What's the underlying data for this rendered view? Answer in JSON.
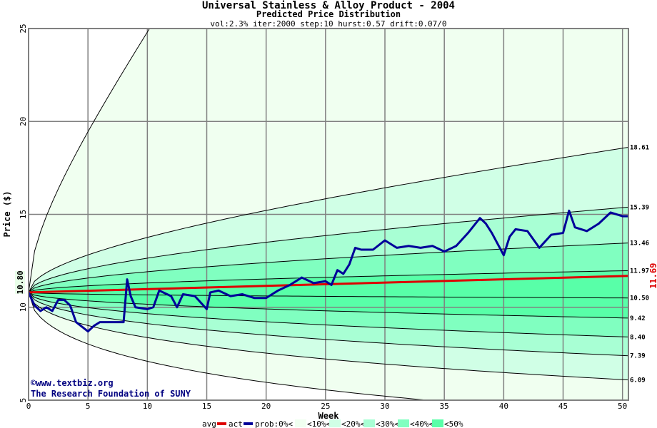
{
  "chart_data": {
    "type": "area",
    "title": "Universal Stainless & Alloy Product - 2004",
    "subtitle": "Predicted Price Distribution",
    "params": "vol:2.3% iter:2000 step:10 hurst:0.57 drift:0.07/0",
    "xlabel": "Week",
    "ylabel": "Price ($)",
    "xlim": [
      0,
      50.5
    ],
    "ylim": [
      5,
      25
    ],
    "xticks": [
      "0",
      "5",
      "10",
      "15",
      "20",
      "25",
      "30",
      "35",
      "40",
      "45",
      "50"
    ],
    "yticks": [
      "5",
      "10",
      "15",
      "20",
      "25"
    ],
    "start_price": 10.8,
    "start_label": "10.80",
    "avg_end": 11.69,
    "avg_end_label": "11.69",
    "percentile_end_values": [
      18.61,
      15.39,
      13.46,
      11.97,
      10.5,
      9.42,
      8.4,
      7.39,
      6.09
    ],
    "percentile_end_labels": [
      "18.61",
      "15.39",
      "13.46",
      "11.97",
      "10.50",
      "9.42",
      "8.40",
      "7.39",
      "6.09"
    ],
    "band_colors": [
      "#f0fff0",
      "#d0ffe6",
      "#a8ffd4",
      "#80ffc0",
      "#58ffa8"
    ],
    "actual": {
      "weeks": [
        0,
        0.5,
        1,
        1.5,
        2,
        2.5,
        3,
        3.5,
        4,
        5,
        5.5,
        6,
        7,
        8,
        8.3,
        8.6,
        9,
        10,
        10.5,
        11,
        12,
        12.5,
        13,
        14,
        15,
        15.3,
        16,
        17,
        18,
        19,
        20,
        21,
        22,
        23,
        24,
        25,
        25.5,
        26,
        26.5,
        27,
        27.5,
        28,
        29,
        30,
        31,
        32,
        33,
        34,
        35,
        36,
        37,
        38,
        38.5,
        39,
        40,
        40.5,
        41,
        42,
        43,
        44,
        45,
        45.5,
        46,
        47,
        48,
        49,
        50,
        50.5
      ],
      "prices": [
        10.8,
        10.1,
        9.8,
        10.0,
        9.8,
        10.4,
        10.4,
        10.1,
        9.2,
        8.7,
        9.0,
        9.2,
        9.2,
        9.2,
        11.5,
        10.6,
        10.0,
        9.9,
        10.0,
        10.9,
        10.6,
        10.0,
        10.7,
        10.6,
        9.9,
        10.8,
        10.9,
        10.6,
        10.7,
        10.5,
        10.5,
        10.9,
        11.2,
        11.6,
        11.3,
        11.4,
        11.2,
        12.0,
        11.8,
        12.3,
        13.2,
        13.1,
        13.1,
        13.6,
        13.2,
        13.3,
        13.2,
        13.3,
        13.0,
        13.3,
        14.0,
        14.8,
        14.5,
        14.0,
        12.8,
        13.8,
        14.2,
        14.1,
        13.2,
        13.9,
        14.0,
        15.2,
        14.3,
        14.1,
        14.5,
        15.1,
        14.9,
        14.9
      ]
    },
    "avg_color": "#dd0000",
    "act_color": "#000099",
    "legend": {
      "avg": "avg",
      "act": "act",
      "prob": "prob:0%<",
      "items": [
        "<10%<",
        "<20%<",
        "<30%<",
        "<40%<",
        "<50%"
      ]
    },
    "watermark": [
      "©www.textbiz.org",
      "The Research Foundation of SUNY"
    ]
  }
}
